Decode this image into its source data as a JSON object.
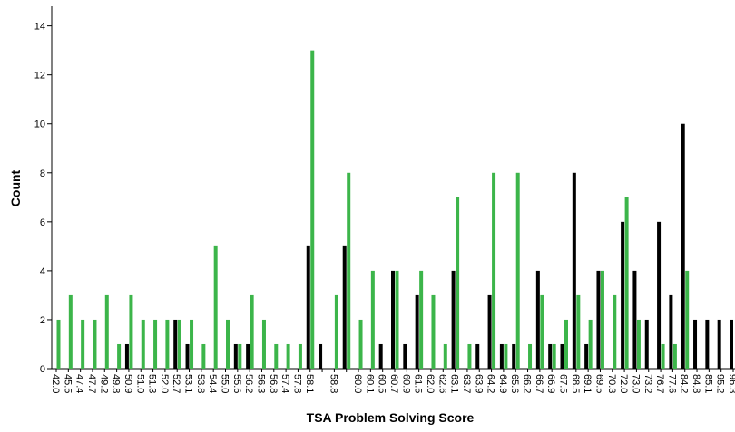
{
  "chart_data": {
    "type": "bar",
    "x_label": "TSA Problem Solving Score",
    "y_label": "Count",
    "categories": [
      "42.0",
      "45.5",
      "47.4",
      "47.7",
      "49.2",
      "49.8",
      "50.9",
      "51.0",
      "51.3",
      "52.0",
      "52.7",
      "53.1",
      "53.8",
      "54.4",
      "55.0",
      "55.6",
      "56.2",
      "56.3",
      "56.8",
      "57.4",
      "57.8",
      "58.1",
      null,
      "58.8",
      null,
      "60.0",
      "60.1",
      "60.5",
      "60.7",
      "60.9",
      "61.5",
      "62.0",
      "62.6",
      "63.1",
      "63.7",
      "63.9",
      "64.2",
      "64.9",
      "65.6",
      "66.2",
      "66.7",
      "66.9",
      "67.5",
      "68.5",
      "69.1",
      "69.5",
      "70.3",
      "72.0",
      "73.0",
      "73.2",
      "76.7",
      "77.6",
      "84.2",
      "84.8",
      "85.1",
      "95.2",
      "96.3"
    ],
    "series": [
      {
        "color": "#000000",
        "values": [
          0,
          0,
          0,
          0,
          0,
          0,
          1,
          0,
          0,
          0,
          2,
          1,
          0,
          0,
          0,
          1,
          1,
          0,
          0,
          0,
          0,
          5,
          1,
          0,
          5,
          0,
          0,
          1,
          4,
          1,
          3,
          0,
          0,
          4,
          0,
          1,
          3,
          1,
          1,
          0,
          4,
          1,
          1,
          8,
          1,
          4,
          0,
          6,
          4,
          2,
          6,
          3,
          10,
          2,
          2,
          2,
          2
        ]
      },
      {
        "color": "#3cb54a",
        "values": [
          2,
          3,
          2,
          2,
          3,
          1,
          3,
          2,
          2,
          2,
          2,
          2,
          1,
          5,
          2,
          1,
          3,
          2,
          1,
          1,
          1,
          13,
          0,
          3,
          8,
          2,
          4,
          0,
          4,
          0,
          4,
          3,
          1,
          7,
          1,
          0,
          8,
          1,
          8,
          1,
          3,
          1,
          2,
          3,
          2,
          4,
          3,
          7,
          2,
          0,
          1,
          1,
          4,
          0,
          0,
          0,
          0
        ]
      }
    ],
    "ylim": [
      0,
      14.8
    ],
    "yticks": [
      0,
      2,
      4,
      6,
      8,
      10,
      12,
      14
    ]
  }
}
